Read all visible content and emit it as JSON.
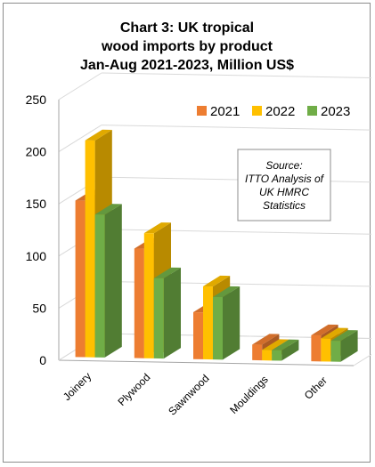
{
  "chart_data": {
    "type": "bar",
    "title_lines": [
      "Chart 3: UK tropical",
      "wood imports by product",
      "Jan-Aug 2021-2023, Million US$"
    ],
    "categories": [
      "Joinery",
      "Plywood",
      "Sawnwood",
      "Mouldings",
      "Other"
    ],
    "series": [
      {
        "name": "2021",
        "color": "#ed7d31",
        "values": [
          150,
          105,
          45,
          15,
          25
        ]
      },
      {
        "name": "2022",
        "color": "#ffc000",
        "values": [
          208,
          120,
          70,
          10,
          22
        ]
      },
      {
        "name": "2023",
        "color": "#70ad47",
        "values": [
          137,
          77,
          60,
          10,
          20
        ]
      }
    ],
    "ylim": [
      0,
      250
    ],
    "yticks": [
      "0",
      "50",
      "100",
      "150",
      "200",
      "250"
    ],
    "grid": true,
    "legend_position": "top-right",
    "annotation_lines": [
      "Source:",
      "ITTO Analysis of",
      "UK HMRC",
      "Statistics"
    ]
  }
}
